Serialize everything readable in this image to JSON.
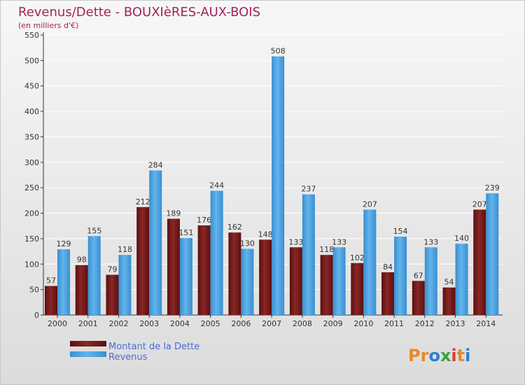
{
  "chart_data": {
    "type": "bar",
    "title": "Revenus/Dette - BOUXIèRES-AUX-BOIS",
    "subtitle": "(en milliers d'€)",
    "xlabel": "",
    "ylabel": "",
    "ylim": [
      0,
      550
    ],
    "yticks": [
      0,
      50,
      100,
      150,
      200,
      250,
      300,
      350,
      400,
      450,
      500,
      550
    ],
    "grid": true,
    "categories": [
      "2000",
      "2001",
      "2002",
      "2003",
      "2004",
      "2005",
      "2006",
      "2007",
      "2008",
      "2009",
      "2010",
      "2011",
      "2012",
      "2013",
      "2014"
    ],
    "series": [
      {
        "name": "Montant de la Dette",
        "color": "#7a1c1c",
        "values": [
          57,
          98,
          79,
          212,
          189,
          176,
          162,
          148,
          133,
          118,
          102,
          84,
          67,
          54,
          207
        ]
      },
      {
        "name": "Revenus",
        "color": "#4da3e0",
        "values": [
          129,
          155,
          118,
          284,
          151,
          244,
          130,
          508,
          237,
          133,
          207,
          154,
          133,
          140,
          239
        ]
      }
    ],
    "legend_position": "bottom-left"
  },
  "colors": {
    "title": "#a3245c",
    "legend_text": "#4a6ad8",
    "axis": "#333333",
    "grid": "#ffffff"
  },
  "logo": {
    "text": "Proxiti",
    "letters": [
      "P",
      "r",
      "o",
      "x",
      "i",
      "t",
      "i"
    ],
    "letter_colors": [
      "#e8892a",
      "#e8892a",
      "#2a7fd0",
      "#3aa63a",
      "#e03a3a",
      "#e8892a",
      "#2a7fd0"
    ]
  }
}
